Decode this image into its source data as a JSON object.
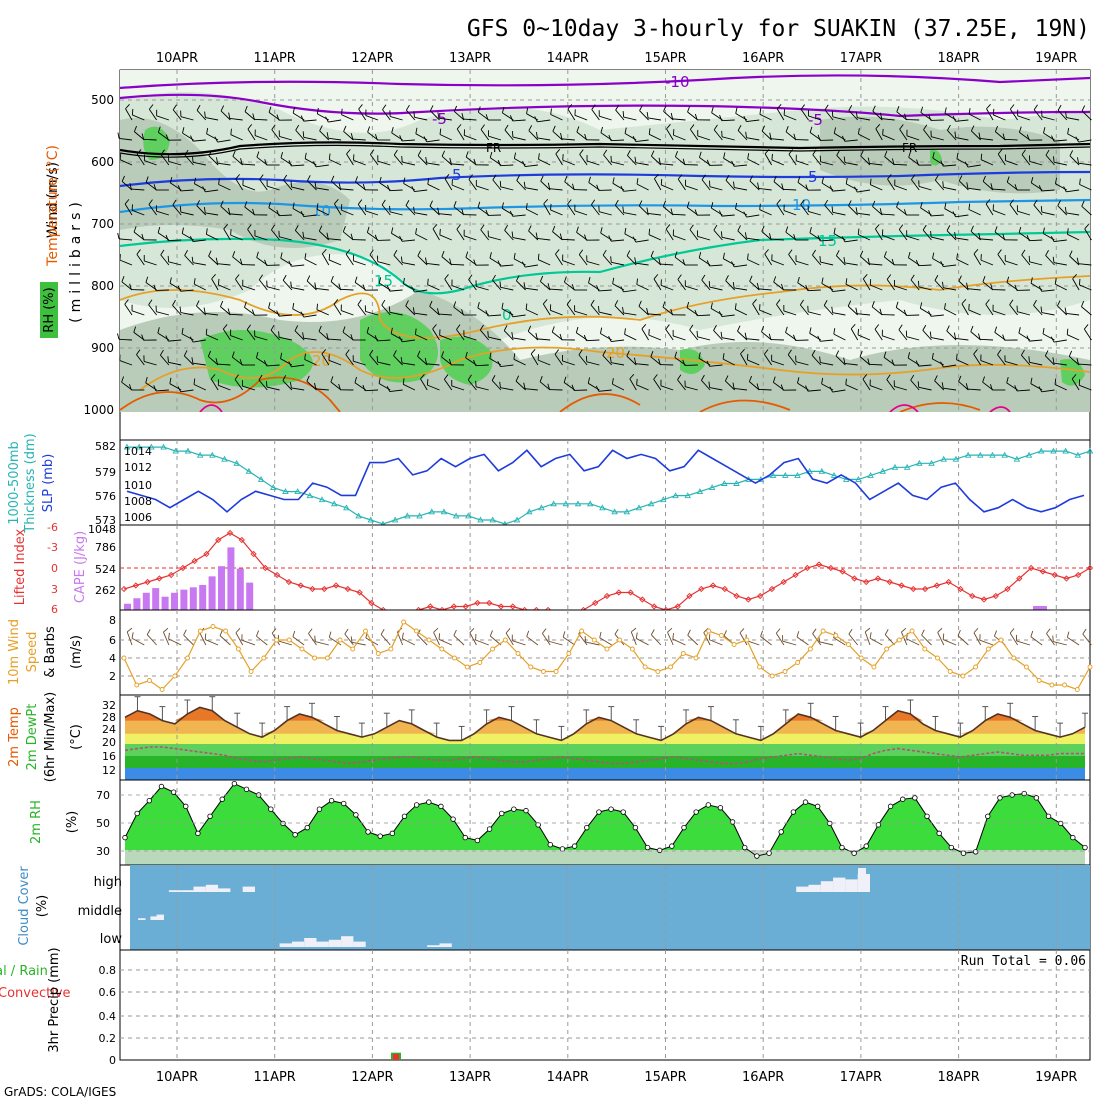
{
  "title": "GFS 0~10day 3-hourly for SUAKIN (37.25E, 19N)",
  "footer": "GrADS: COLA/IGES",
  "dates": [
    "10APR",
    "11APR",
    "12APR",
    "13APR",
    "14APR",
    "15APR",
    "16APR",
    "17APR",
    "18APR",
    "19APR"
  ],
  "colors": {
    "purple": "#8a00c8",
    "black": "#000000",
    "blue": "#1e3cdc",
    "sky": "#1e96e6",
    "teal": "#00c896",
    "orange": "#e6a028",
    "darkorange": "#e65a00",
    "magenta": "#e6008c",
    "slp": "#1e3cdc",
    "thick": "#28b4b4",
    "cape": "#c878f0",
    "li": "#e63232",
    "wind": "#e6a028",
    "cloudbg": "#6aaed6"
  },
  "panels": {
    "upper": {
      "ylabel_wind": "Wind (m/s)",
      "ylabel_temp": "Temperature (°C)",
      "ylabel_rh": "RH (%)",
      "ylabel_mb": "(millibars)",
      "pressure_ticks": [
        "500",
        "600",
        "700",
        "800",
        "900",
        "1000"
      ],
      "contour_labels": [
        "-10",
        "-5",
        "FR",
        "FR",
        "5",
        "5",
        "10",
        "10",
        "15",
        "15",
        "15",
        "0",
        "20",
        "20",
        "-5",
        "-10"
      ]
    },
    "slp": {
      "ylabel_a": "1000-500mb",
      "ylabel_b": "Thickness (dm)",
      "ylabel_c": "SLP (mb)",
      "left_ticks": [
        "582",
        "579",
        "576",
        "573"
      ],
      "right_ticks": [
        "1014",
        "1012",
        "1010",
        "1008",
        "1006"
      ]
    },
    "cape": {
      "ylabel_a": "Lifted Index",
      "ylabel_b": "CAPE (J/kg)",
      "li_ticks": [
        "-6",
        "-3",
        "0",
        "3",
        "6"
      ],
      "cape_ticks": [
        "1048",
        "786",
        "524",
        "262"
      ]
    },
    "wind": {
      "ylabel_a": "10m Wind",
      "ylabel_b": "Speed",
      "ylabel_c": "& Barbs",
      "ylabel_d": "(m/s)",
      "ticks": [
        "8",
        "6",
        "4",
        "2"
      ]
    },
    "temp": {
      "ylabel_a": "2m Temp",
      "ylabel_b": "2m DewPt",
      "ylabel_c": "(6hr Min/Max)",
      "ylabel_d": "(°C)",
      "ticks": [
        "32",
        "28",
        "24",
        "20",
        "16",
        "12"
      ]
    },
    "rh": {
      "ylabel_a": "2m RH",
      "ylabel_b": "(%)",
      "ticks": [
        "70",
        "50",
        "30"
      ]
    },
    "cloud": {
      "ylabel_a": "Cloud Cover",
      "ylabel_b": "(%)",
      "levels": [
        "high",
        "middle",
        "low"
      ]
    },
    "precip": {
      "ylabel_a": "3hr Precip (mm)",
      "ylabel_b": "tal / Rain",
      "ylabel_c": "Convective",
      "run_total": "Run Total = 0.06",
      "ticks": [
        "0.8",
        "0.6",
        "0.4",
        "0.2",
        "0"
      ]
    }
  },
  "chart_data": {
    "type": "line",
    "title": "GFS 0~10day 3-hourly for SUAKIN (37.25E, 19N)",
    "x_categories": [
      "10APR",
      "11APR",
      "12APR",
      "13APR",
      "14APR",
      "15APR",
      "16APR",
      "17APR",
      "18APR",
      "19APR"
    ],
    "time_step_hours": 3,
    "slp_mb": [
      1009,
      1008.5,
      1008,
      1007,
      1008,
      1009,
      1008,
      1006.5,
      1008,
      1009,
      1008.5,
      1008,
      1008,
      1010,
      1009.5,
      1008.5,
      1008.5,
      1012.5,
      1012.5,
      1013,
      1011,
      1011.5,
      1013,
      1012,
      1013,
      1013.5,
      1011.5,
      1012.5,
      1014,
      1012,
      1013,
      1013.5,
      1011.5,
      1012,
      1014,
      1013,
      1013.5,
      1013,
      1011.5,
      1012,
      1014,
      1013,
      1012,
      1011,
      1010,
      1011,
      1012.5,
      1013,
      1010.5,
      1010,
      1011,
      1010,
      1008,
      1009,
      1010,
      1008.5,
      1008,
      1009.5,
      1010,
      1008,
      1006.5,
      1007,
      1008,
      1007,
      1006.5,
      1007,
      1008,
      1008.5
    ],
    "thickness_dm": [
      582.5,
      582.5,
      582.5,
      582.5,
      582,
      582,
      581.5,
      581.5,
      581,
      580.5,
      579.5,
      578.5,
      577.5,
      577,
      577,
      576.5,
      576,
      575.5,
      575,
      574,
      573.5,
      573,
      573.5,
      574,
      574,
      574.5,
      574.5,
      574,
      574,
      573.5,
      573.5,
      573,
      573.5,
      574.5,
      575,
      575.5,
      575.5,
      575.5,
      575.5,
      575,
      574.5,
      574.5,
      575,
      575.5,
      576,
      576.5,
      576.5,
      577,
      577.5,
      578,
      578,
      578.5,
      578.5,
      579,
      579,
      579,
      579.5,
      579.5,
      579,
      578.5,
      578.5,
      579,
      579.5,
      580,
      580,
      580.5,
      580.5,
      581,
      581,
      581.5,
      581.5,
      581.5,
      581.5,
      581,
      581.5,
      582,
      582,
      582,
      581.5,
      582
    ],
    "cape_jkg": [
      80,
      150,
      220,
      280,
      170,
      220,
      260,
      290,
      320,
      430,
      560,
      800,
      530,
      350
    ],
    "lifted_index": [
      3,
      2.5,
      2,
      1.5,
      1,
      0,
      -1,
      -2,
      -4,
      -5,
      -4,
      -2,
      0,
      1,
      2,
      2.5,
      3,
      3,
      2.5,
      3,
      3.5,
      5,
      6,
      6.5,
      6.5,
      6,
      5.5,
      6,
      5.5,
      5.5,
      5,
      5,
      5.5,
      5.5,
      6,
      6,
      6,
      6.5,
      6.5,
      6,
      5,
      4,
      3.5,
      3.5,
      4.5,
      5.5,
      6,
      5.5,
      4,
      3,
      2.5,
      3,
      4,
      4.5,
      4,
      3,
      2,
      1,
      0,
      -0.5,
      0,
      0.5,
      1.5,
      2,
      1.5,
      2,
      2.5,
      3,
      3,
      2.5,
      2,
      3,
      4,
      4.5,
      4,
      3,
      1.5,
      0,
      0.5,
      1,
      1.5,
      1,
      0
    ],
    "wind_speed_ms": [
      4,
      1,
      1.5,
      0.5,
      2,
      4,
      7,
      7.5,
      7,
      5,
      2.5,
      4,
      6,
      6,
      5,
      4,
      4,
      6,
      5,
      7,
      4.5,
      5,
      8,
      7,
      6,
      5,
      4,
      3,
      3.5,
      5,
      6,
      4.5,
      3,
      2.5,
      2.5,
      4.5,
      7,
      6,
      5,
      6,
      5,
      3,
      2.5,
      3,
      4.5,
      4,
      7,
      6.5,
      5.5,
      6,
      3,
      2,
      2.5,
      3.5,
      5,
      7,
      6.5,
      5.5,
      4,
      3,
      5,
      6,
      7,
      5,
      4,
      2.5,
      2,
      3,
      5,
      6,
      4,
      3,
      1.5,
      1,
      1,
      0.5,
      3
    ],
    "temp_2m_c": [
      29,
      31,
      30,
      28,
      27,
      30,
      32,
      31,
      28,
      26,
      24,
      23,
      25,
      28,
      30,
      29,
      27,
      25,
      24,
      23,
      24,
      26,
      28,
      27,
      25,
      23,
      22,
      22,
      24,
      27,
      29,
      28,
      26,
      24,
      23,
      22,
      24,
      27,
      29,
      28,
      26,
      24,
      23,
      22,
      24,
      27,
      29,
      28,
      26,
      24,
      23,
      22,
      24,
      27,
      30,
      29,
      27,
      25,
      24,
      23,
      25,
      28,
      31,
      30,
      27,
      25,
      24,
      23,
      25,
      28,
      30,
      29,
      27,
      25,
      24,
      23,
      24,
      26
    ],
    "dewpoint_2m_c": [
      19,
      19.5,
      20,
      20,
      19.5,
      19,
      18.5,
      18,
      17.5,
      16.5,
      16,
      15.5,
      16,
      16.5,
      17,
      16.5,
      16,
      15.5,
      15,
      15.5,
      16,
      16.5,
      17,
      17,
      16.5,
      16,
      16,
      16.5,
      17,
      16.5,
      16,
      15.5,
      15.5,
      16,
      16.5,
      17,
      16.5,
      16,
      15.5,
      15,
      15,
      15.5,
      16,
      16.5,
      17,
      16.5,
      16,
      15.5,
      15,
      15,
      15.5,
      16.5,
      17,
      17.5,
      18,
      17.5,
      17,
      16.5,
      16,
      16.5,
      18,
      19,
      19.5,
      19,
      18.5,
      18,
      17.5,
      17,
      17.5,
      18,
      18.5,
      18,
      17.5,
      17.5,
      17.5,
      18,
      18,
      18
    ],
    "rh_2m_pct": [
      40,
      57,
      66,
      76,
      72,
      62,
      43,
      55,
      67,
      78,
      74,
      70,
      60,
      50,
      42,
      47,
      60,
      66,
      64,
      56,
      44,
      41,
      43,
      55,
      63,
      65,
      62,
      53,
      40,
      38,
      46,
      57,
      60,
      59,
      49,
      35,
      32,
      34,
      47,
      58,
      60,
      58,
      47,
      33,
      31,
      34,
      47,
      58,
      63,
      61,
      51,
      33,
      27,
      29,
      44,
      58,
      65,
      62,
      50,
      33,
      29,
      34,
      49,
      62,
      67,
      68,
      55,
      43,
      33,
      29,
      30,
      55,
      68,
      70,
      71,
      68,
      55,
      50,
      40,
      33
    ],
    "cloud_high_pct": [
      0,
      0,
      0,
      10,
      10,
      30,
      40,
      20,
      0,
      30,
      0,
      0,
      0,
      0,
      0,
      0,
      0,
      0,
      0,
      0,
      0,
      0,
      0,
      0,
      0,
      0,
      0,
      0,
      0,
      0,
      0,
      0,
      0,
      0,
      0,
      0,
      0,
      0,
      0,
      0,
      0,
      0,
      0,
      0,
      0,
      0,
      0,
      0,
      0,
      0,
      0,
      0,
      0,
      0,
      30,
      40,
      60,
      80,
      70,
      100,
      0,
      0
    ],
    "cloud_mid_pct": [
      0,
      10,
      0,
      20,
      30,
      0,
      0,
      0,
      0,
      0,
      0,
      0,
      0,
      0,
      0,
      0,
      0,
      0,
      0,
      0,
      0,
      0,
      0,
      0,
      0,
      0,
      0,
      0,
      0,
      0,
      0,
      0,
      0,
      0,
      0,
      0,
      0,
      0,
      0,
      0,
      0,
      0,
      0,
      0,
      0,
      0,
      0,
      0,
      0,
      0,
      0,
      0,
      0,
      0,
      0,
      0,
      0,
      0,
      0,
      0,
      0,
      0
    ],
    "cloud_low_pct": [
      0,
      0,
      0,
      0,
      0,
      0,
      0,
      0,
      0,
      0,
      0,
      0,
      20,
      30,
      50,
      30,
      40,
      60,
      30,
      0,
      0,
      0,
      0,
      0,
      10,
      20,
      0
    ],
    "precip_total_mm": [
      0,
      0,
      0,
      0,
      0,
      0,
      0,
      0,
      0,
      0,
      0,
      0,
      0,
      0,
      0,
      0,
      0,
      0,
      0,
      0,
      0,
      0,
      0,
      0,
      0,
      0.06,
      0,
      0,
      0,
      0
    ],
    "precip_convective_mm": [
      0,
      0,
      0,
      0,
      0,
      0,
      0,
      0,
      0,
      0,
      0,
      0,
      0,
      0,
      0,
      0,
      0,
      0,
      0,
      0,
      0,
      0,
      0,
      0,
      0,
      0.05,
      0,
      0,
      0,
      0
    ],
    "run_total_mm": 0.06
  }
}
